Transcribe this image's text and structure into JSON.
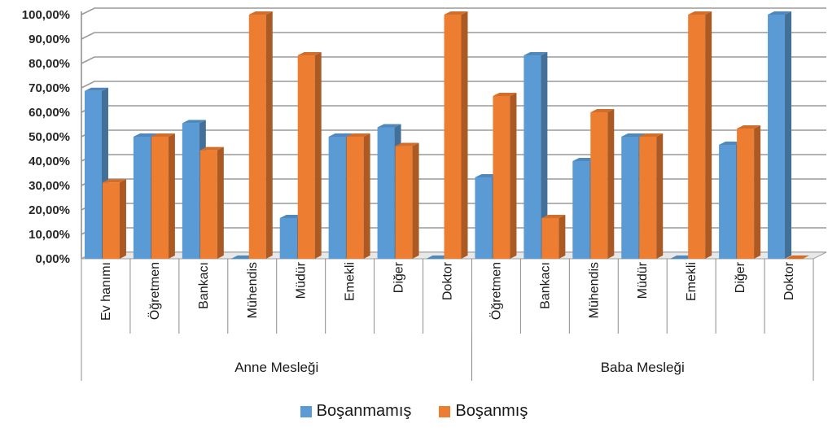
{
  "chart_data": {
    "type": "bar",
    "ylim": [
      0,
      100
    ],
    "y_ticks": [
      "0,00%",
      "10,00%",
      "20,00%",
      "30,00%",
      "40,00%",
      "50,00%",
      "60,00%",
      "70,00%",
      "80,00%",
      "90,00%",
      "100,00%"
    ],
    "grid": true,
    "legend_position": "bottom",
    "groups": [
      {
        "label": "Anne Mesleği",
        "categories": [
          "Ev hanımı",
          "Öğretmen",
          "Bankacı",
          "Mühendis",
          "Müdür",
          "Emekli",
          "Diğer",
          "Doktor"
        ]
      },
      {
        "label": "Baba Mesleği",
        "categories": [
          "Öğretmen",
          "Bankacı",
          "Mühendis",
          "Müdür",
          "Emekli",
          "Diğer",
          "Doktor"
        ]
      }
    ],
    "series": [
      {
        "name": "Boşanmamış",
        "color": "#5B9BD5",
        "values": [
          68.75,
          50,
          55.56,
          0,
          16.67,
          50,
          53.85,
          0,
          33.33,
          83.33,
          40,
          50,
          0,
          46.67,
          100
        ]
      },
      {
        "name": "Boşanmış",
        "color": "#ED7D31",
        "values": [
          31.25,
          50,
          44.44,
          100,
          83.33,
          50,
          46.15,
          100,
          66.67,
          16.67,
          60,
          50,
          100,
          53.33,
          0
        ]
      }
    ]
  }
}
